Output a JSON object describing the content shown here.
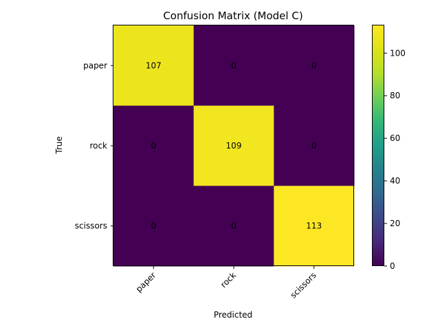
{
  "chart_data": {
    "type": "heatmap",
    "title": "Confusion Matrix (Model C)",
    "xlabel": "Predicted",
    "ylabel": "True",
    "x_categories": [
      "paper",
      "rock",
      "scissors"
    ],
    "y_categories": [
      "paper",
      "rock",
      "scissors"
    ],
    "values": [
      [
        107,
        0,
        0
      ],
      [
        0,
        109,
        0
      ],
      [
        0,
        0,
        113
      ]
    ],
    "colorbar": {
      "min": 0,
      "max": 113,
      "ticks": [
        0,
        20,
        40,
        60,
        80,
        100
      ],
      "colormap": "viridis"
    },
    "colors": {
      "low": "#440154",
      "high": "#fde725"
    },
    "grid": false,
    "legend": "colorbar-right"
  }
}
